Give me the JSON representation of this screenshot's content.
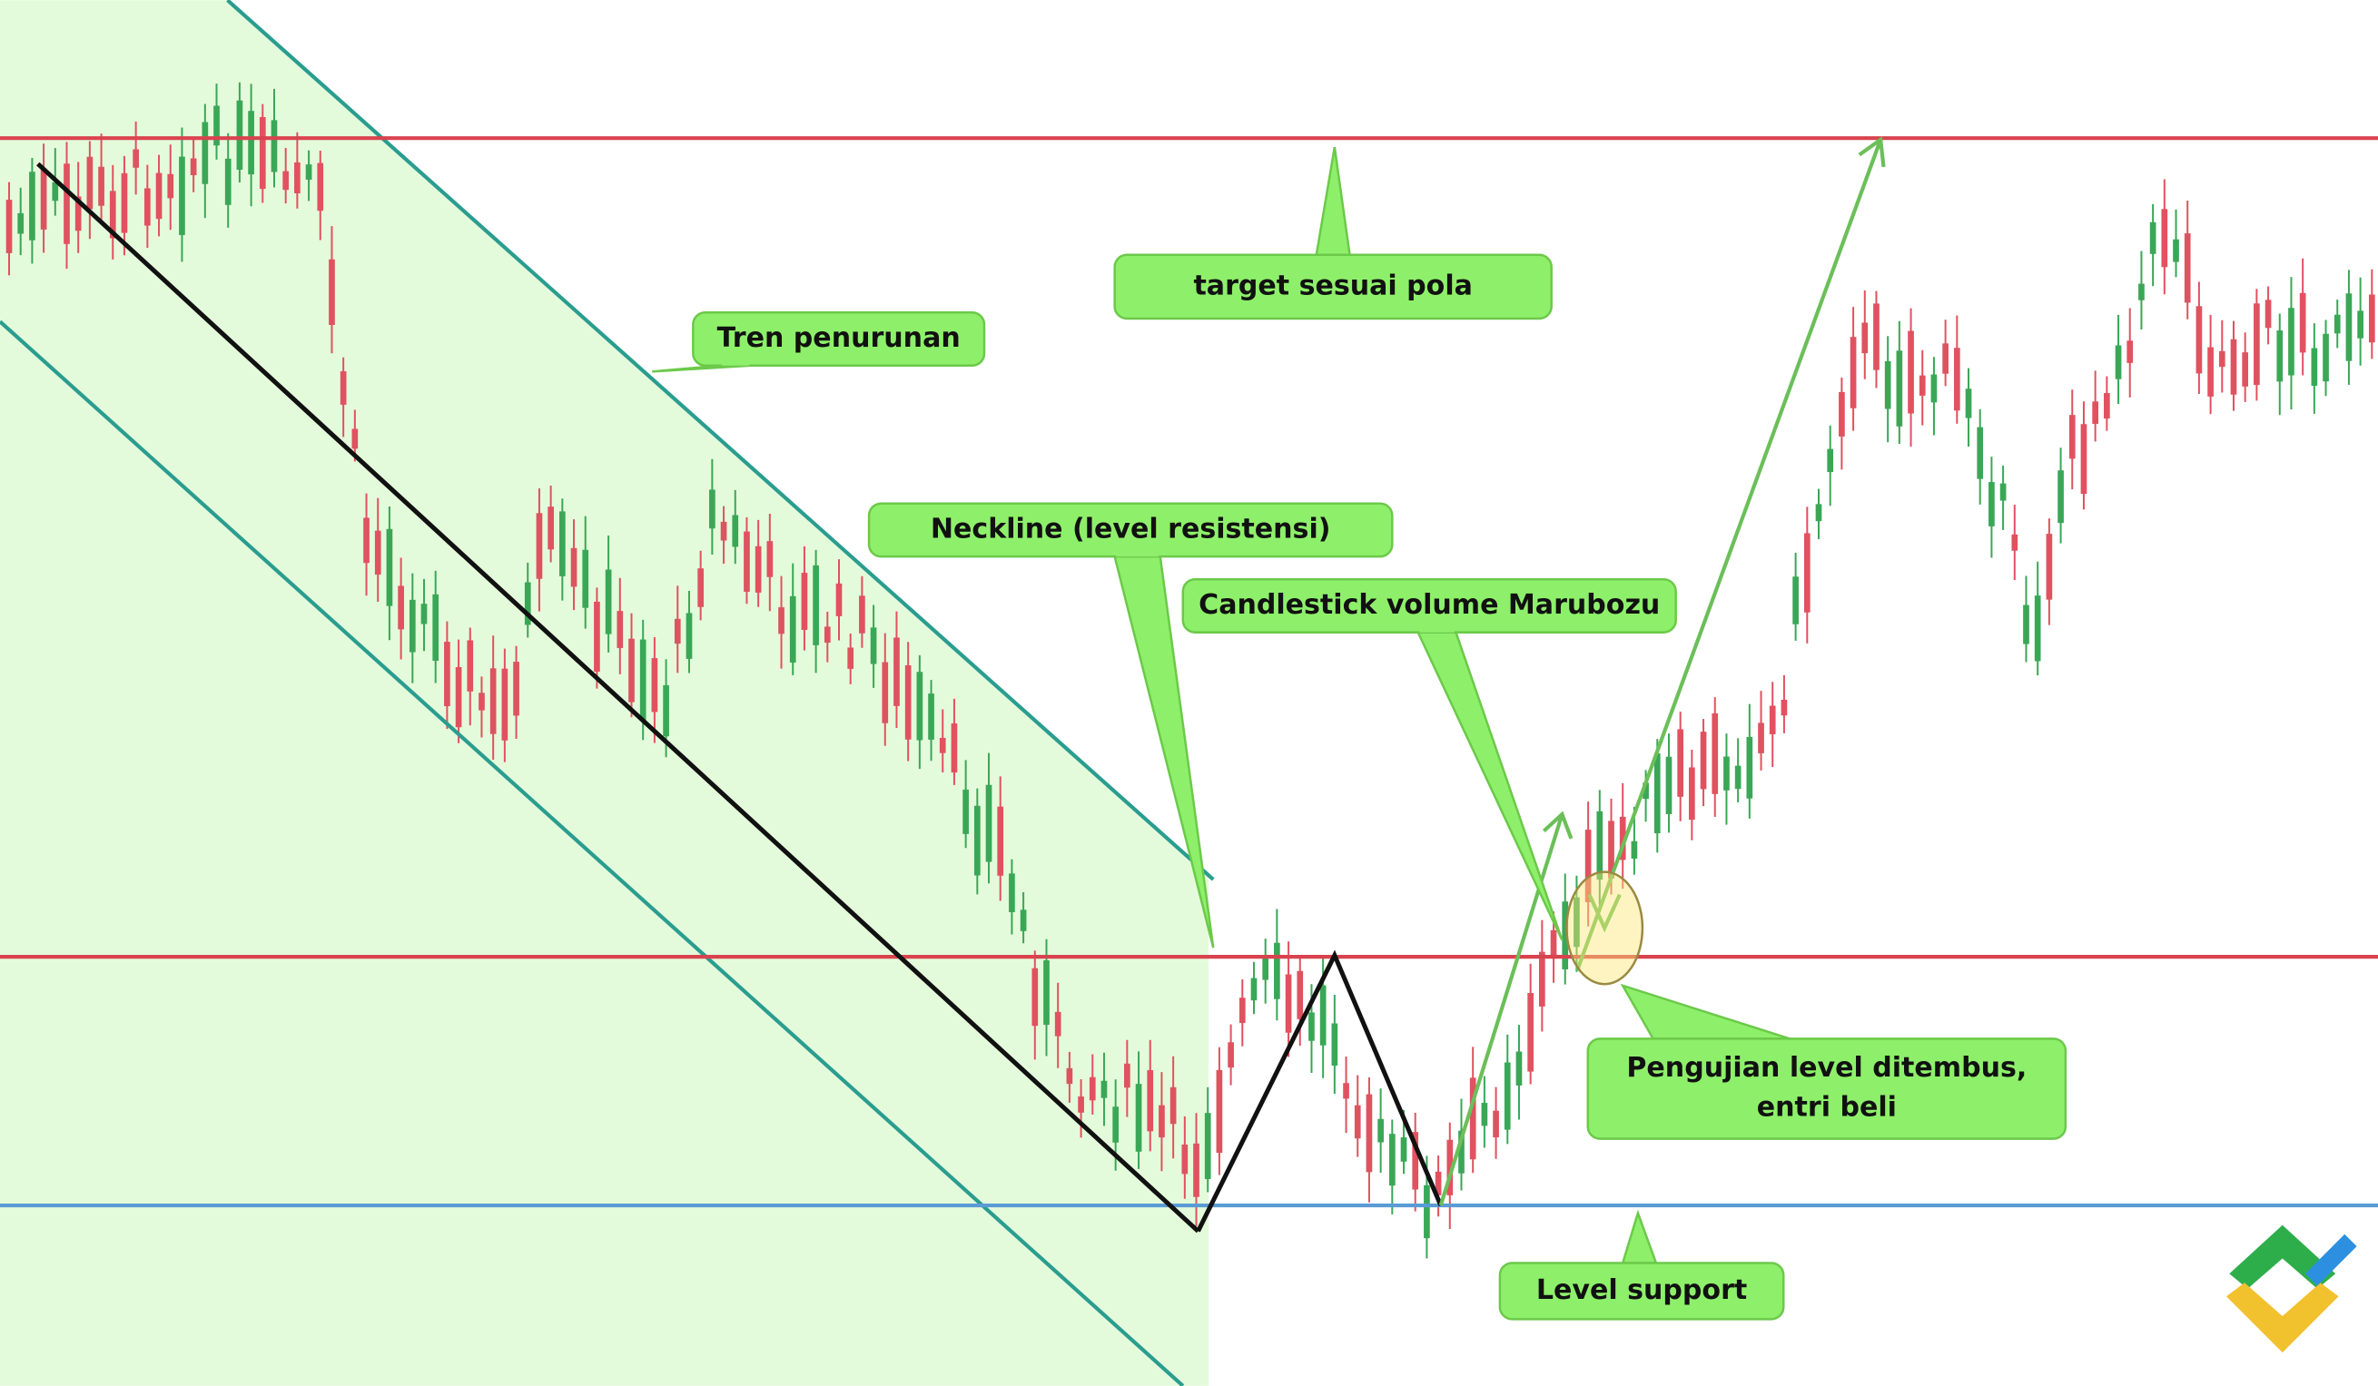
{
  "annotations": [
    {
      "name": "downtrend",
      "lines": [
        "Tren penurunan"
      ]
    },
    {
      "name": "target",
      "lines": [
        "target sesuai pola"
      ]
    },
    {
      "name": "neckline",
      "lines": [
        "Neckline (level resistensi)"
      ]
    },
    {
      "name": "marubozu",
      "lines": [
        "Candlestick volume Marubozu"
      ]
    },
    {
      "name": "breakout-test",
      "lines": [
        "Pengujian level ditembus,",
        "entri beli"
      ]
    },
    {
      "name": "support",
      "lines": [
        "Level support"
      ]
    }
  ]
}
